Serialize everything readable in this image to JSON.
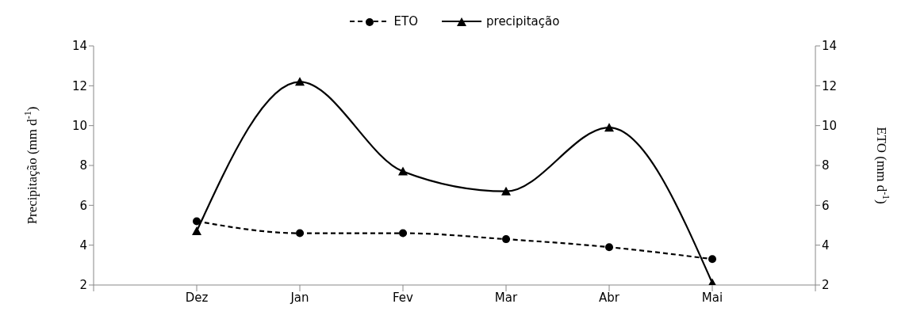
{
  "chart_data": {
    "type": "line",
    "categories": [
      "Dez",
      "Jan",
      "Fev",
      "Mar",
      "Abr",
      "Mai"
    ],
    "ylabel": "Precipitação (mm d$^{-1}$)",
    "y2label": "ETO (mm d$^{-1}$)",
    "ylim": [
      2,
      14
    ],
    "yticks": [
      2,
      4,
      6,
      8,
      10,
      12,
      14
    ],
    "y2lim": [
      2,
      14
    ],
    "y2ticks": [
      2,
      4,
      6,
      8,
      10,
      12,
      14
    ],
    "grid": false,
    "legend": "top",
    "series": [
      {
        "name": "ETO",
        "color": "#000000",
        "marker": "circle",
        "line_style": "dashed",
        "values": [
          5.2,
          4.6,
          4.6,
          4.3,
          3.9,
          3.3
        ]
      },
      {
        "name": "precipitação",
        "color": "#000000",
        "marker": "triangle",
        "line_style": "solid",
        "values": [
          4.7,
          12.2,
          7.7,
          6.7,
          9.9,
          2.1
        ]
      }
    ]
  }
}
